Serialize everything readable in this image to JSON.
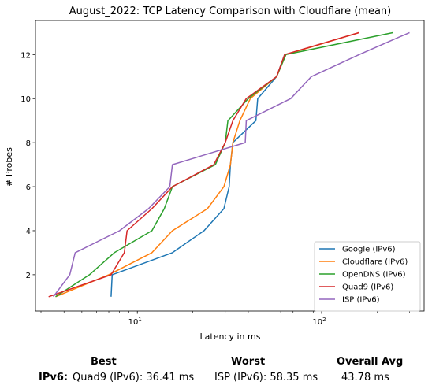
{
  "chart_data": {
    "type": "line",
    "title": "August_2022: TCP Latency Comparison with Cloudflare (mean)",
    "xlabel": "Latency in ms",
    "ylabel": "# Probes",
    "xscale": "log",
    "xlim": [
      2.8,
      360
    ],
    "ylim": [
      0.35,
      13.55
    ],
    "xticks": [
      {
        "value": 10,
        "base": "10",
        "exp": "1"
      },
      {
        "value": 100,
        "base": "10",
        "exp": "2"
      }
    ],
    "yticks": [
      2,
      4,
      6,
      8,
      10,
      12
    ],
    "grid": false,
    "legend_position": "lower right",
    "series": [
      {
        "name": "Google (IPv6)",
        "color": "#1f77b4",
        "points": [
          [
            7.2,
            1
          ],
          [
            7.3,
            2
          ],
          [
            15.5,
            3
          ],
          [
            23,
            4
          ],
          [
            29.5,
            5
          ],
          [
            31.5,
            6
          ],
          [
            32,
            7
          ],
          [
            33,
            8
          ],
          [
            44,
            9
          ],
          [
            45,
            10
          ],
          [
            57,
            11
          ],
          [
            63,
            12
          ]
        ]
      },
      {
        "name": "Cloudflare (IPv6)",
        "color": "#ff7f0e",
        "points": [
          [
            3.6,
            1
          ],
          [
            7,
            2
          ],
          [
            12,
            3
          ],
          [
            15.5,
            4
          ],
          [
            24,
            5
          ],
          [
            29.5,
            6
          ],
          [
            32,
            7
          ],
          [
            33,
            8
          ],
          [
            36,
            9
          ],
          [
            41,
            10
          ],
          [
            57,
            11
          ],
          [
            64,
            12
          ],
          [
            160,
            13
          ]
        ]
      },
      {
        "name": "OpenDNS (IPv6)",
        "color": "#2ca02c",
        "points": [
          [
            3.6,
            1
          ],
          [
            5.5,
            2
          ],
          [
            7.5,
            3
          ],
          [
            12,
            4
          ],
          [
            14,
            5
          ],
          [
            15.5,
            6
          ],
          [
            26.5,
            7
          ],
          [
            30,
            8
          ],
          [
            31,
            9
          ],
          [
            40,
            10
          ],
          [
            57,
            11
          ],
          [
            64,
            12
          ],
          [
            245,
            13
          ]
        ]
      },
      {
        "name": "Quad9 (IPv6)",
        "color": "#d62728",
        "points": [
          [
            3.3,
            1
          ],
          [
            7.2,
            2
          ],
          [
            8.5,
            3
          ],
          [
            8.8,
            4
          ],
          [
            12,
            5
          ],
          [
            15.5,
            6
          ],
          [
            26,
            7
          ],
          [
            30,
            8
          ],
          [
            33,
            9
          ],
          [
            39,
            10
          ],
          [
            57,
            11
          ],
          [
            63,
            12
          ],
          [
            160,
            13
          ]
        ]
      },
      {
        "name": "ISP (IPv6)",
        "color": "#9467bd",
        "points": [
          [
            3.5,
            1
          ],
          [
            4.3,
            2
          ],
          [
            4.6,
            3
          ],
          [
            8,
            4
          ],
          [
            11.5,
            5
          ],
          [
            15,
            6
          ],
          [
            15.5,
            7
          ],
          [
            38.5,
            8
          ],
          [
            39,
            9
          ],
          [
            68,
            10
          ],
          [
            88,
            11
          ],
          [
            160,
            12
          ],
          [
            300,
            13
          ]
        ]
      }
    ]
  },
  "stats": {
    "best_header": "Best",
    "worst_header": "Worst",
    "avg_header": "Overall Avg",
    "row_label": "IPv6:",
    "best_value": "Quad9 (IPv6): 36.41 ms",
    "worst_value": "ISP (IPv6): 58.35 ms",
    "avg_value": "43.78 ms"
  }
}
